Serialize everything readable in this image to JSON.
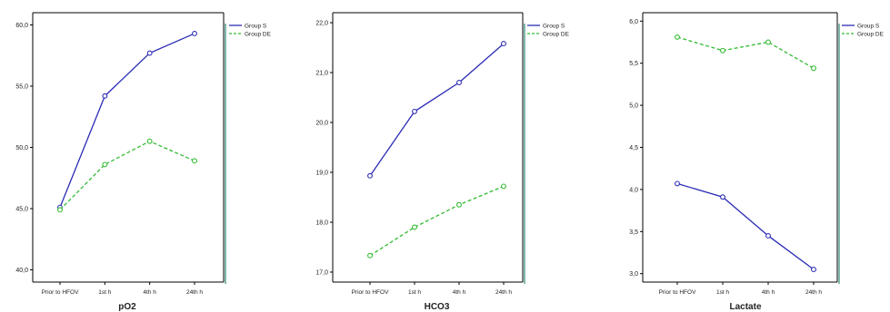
{
  "chart_data": [
    {
      "type": "line",
      "xlabel": "pO2",
      "categories": [
        "Prior to HFOV",
        "1st h",
        "4th h",
        "24th h"
      ],
      "ylim": [
        39.0,
        61.0
      ],
      "yticks": [
        "40,0",
        "45,0",
        "50,0",
        "55,0",
        "60,0"
      ],
      "ytick_values": [
        40,
        45,
        50,
        55,
        60
      ],
      "series": [
        {
          "name": "Group S",
          "values": [
            45.1,
            54.2,
            57.7,
            59.3
          ],
          "color": "#2b2bb5",
          "style": "solid"
        },
        {
          "name": "Group DE",
          "values": [
            44.9,
            48.6,
            50.5,
            48.9
          ],
          "color": "#33bb33",
          "style": "dashed"
        }
      ],
      "legend_position": "top-right"
    },
    {
      "type": "line",
      "xlabel": "HCO3",
      "categories": [
        "Prior to HFOV",
        "1st h",
        "4th h",
        "24th h"
      ],
      "ylim": [
        16.8,
        22.2
      ],
      "yticks": [
        "17,0",
        "18,0",
        "19,0",
        "20,0",
        "21,0",
        "22,0"
      ],
      "ytick_values": [
        17,
        18,
        19,
        20,
        21,
        22
      ],
      "series": [
        {
          "name": "Group S",
          "values": [
            18.93,
            20.22,
            20.8,
            21.58
          ],
          "color": "#2b2bb5",
          "style": "solid"
        },
        {
          "name": "Group DE",
          "values": [
            17.33,
            17.9,
            18.35,
            18.72
          ],
          "color": "#33bb33",
          "style": "dashed"
        }
      ],
      "legend_position": "top-right"
    },
    {
      "type": "line",
      "xlabel": "Lactate",
      "categories": [
        "Prior to HFOV",
        "1st h",
        "4th h",
        "24th h"
      ],
      "ylim": [
        2.9,
        6.1
      ],
      "yticks": [
        "3,0",
        "3,5",
        "4,0",
        "4,5",
        "5,0",
        "5,5",
        "6,0"
      ],
      "ytick_values": [
        3,
        3.5,
        4,
        4.5,
        5,
        5.5,
        6
      ],
      "series": [
        {
          "name": "Group S",
          "values": [
            4.07,
            3.91,
            3.45,
            3.05
          ],
          "color": "#2b2bb5",
          "style": "solid"
        },
        {
          "name": "Group DE",
          "values": [
            5.81,
            5.65,
            5.75,
            5.44
          ],
          "color": "#33bb33",
          "style": "dashed"
        }
      ],
      "legend_position": "top-right"
    }
  ]
}
